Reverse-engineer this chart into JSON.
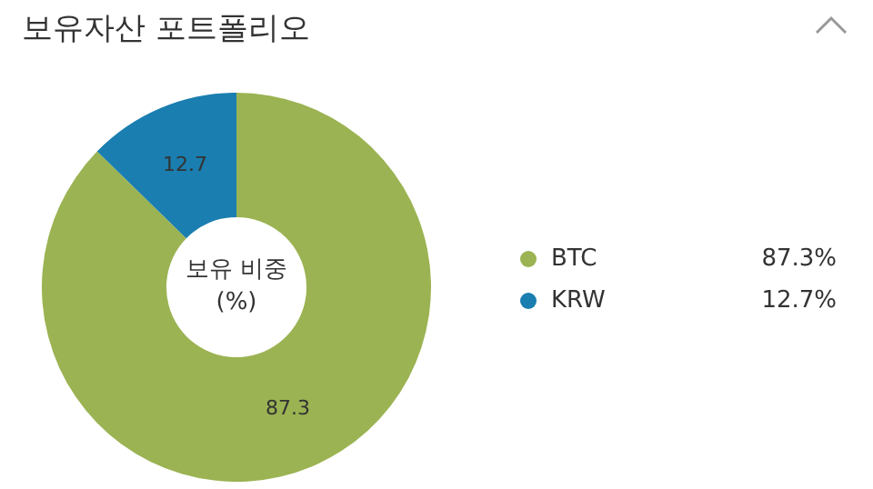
{
  "chart_data": {
    "type": "donut",
    "title": "보유자산 포트폴리오",
    "categories": [
      "BTC",
      "KRW"
    ],
    "values": [
      87.3,
      12.7
    ],
    "colors": [
      "#9bb352",
      "#1a7eb0"
    ],
    "value_labels": [
      "87.3",
      "12.7"
    ],
    "legend": "right",
    "annotations": [
      "보유 비중 (%)",
      "87.3%",
      "12.7%"
    ]
  }
}
